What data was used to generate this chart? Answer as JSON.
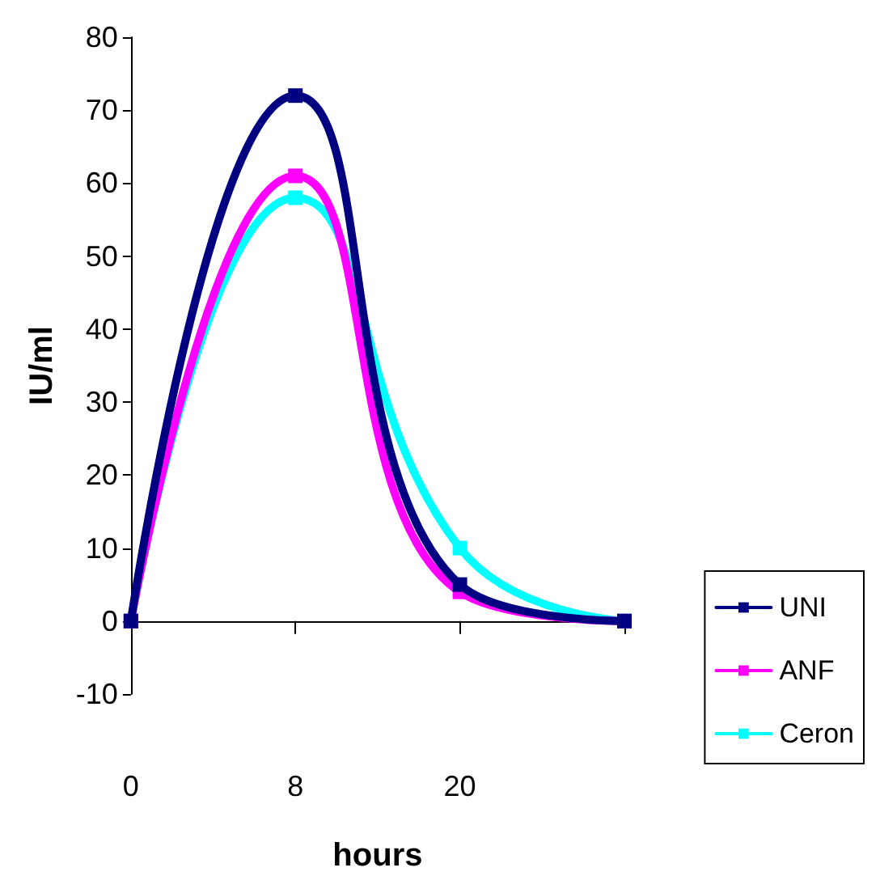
{
  "chart_data": {
    "type": "line",
    "xlabel": "hours",
    "ylabel": "IU/ml",
    "categories": [
      "0",
      "8",
      "20",
      null
    ],
    "series": [
      {
        "name": "UNI",
        "color": "#000080",
        "values": [
          0,
          72,
          5,
          0
        ]
      },
      {
        "name": "ANF",
        "color": "#ff00ff",
        "values": [
          0,
          61,
          4,
          0
        ]
      },
      {
        "name": "Ceron",
        "color": "#00ffff",
        "values": [
          0,
          58,
          10,
          0
        ]
      }
    ],
    "ylim": [
      -10,
      80
    ],
    "yticks": [
      -10,
      0,
      10,
      20,
      30,
      40,
      50,
      60,
      70,
      80
    ],
    "legend": "right",
    "marker": "square",
    "line_style": "solid"
  }
}
